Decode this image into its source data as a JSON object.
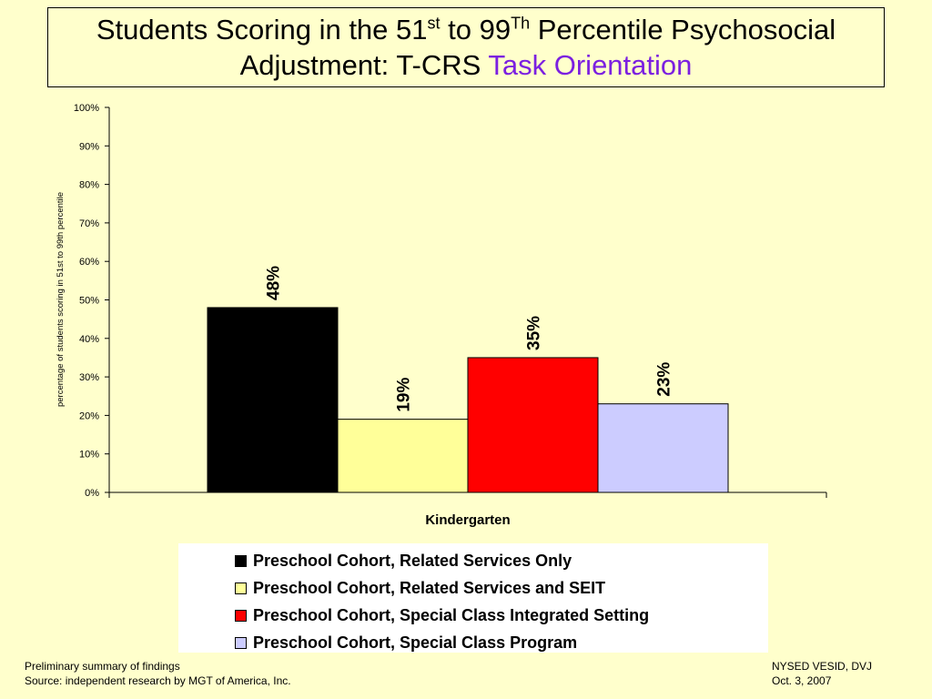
{
  "title": {
    "line1_part1": "Students Scoring in the 51",
    "line1_sup1": "st",
    "line1_part2": " to 99",
    "line1_sup2": "Th",
    "line1_part3": " Percentile Psychosocial",
    "line2_part1": "Adjustment: T-CRS ",
    "line2_accent": "Task Orientation",
    "accent_color": "#7B20E0"
  },
  "chart_data": {
    "type": "bar",
    "categories": [
      "Kindergarten"
    ],
    "series": [
      {
        "name": "Preschool Cohort, Related Services Only",
        "values": [
          48
        ],
        "color": "#000000",
        "label": "48%"
      },
      {
        "name": "Preschool Cohort, Related Services and SEIT",
        "values": [
          19
        ],
        "color": "#FFFF99",
        "label": "19%"
      },
      {
        "name": "Preschool Cohort, Special Class Integrated Setting",
        "values": [
          35
        ],
        "color": "#FF0000",
        "label": "35%"
      },
      {
        "name": "Preschool Cohort, Special Class Program",
        "values": [
          23
        ],
        "color": "#CCCCFF",
        "label": "23%"
      }
    ],
    "ylabel": "percentage of students scoring in 51st to 99th percentile",
    "xlabel": "Kindergarten",
    "ylim": [
      0,
      100
    ],
    "yticks": [
      "0%",
      "10%",
      "20%",
      "30%",
      "40%",
      "50%",
      "60%",
      "70%",
      "80%",
      "90%",
      "100%"
    ],
    "grid": false,
    "legend_position": "bottom"
  },
  "footer": {
    "left_line1": "Preliminary summary of findings",
    "left_line2": "Source: independent research by MGT of America, Inc.",
    "right_line1": "NYSED VESID, DVJ",
    "right_line2": "Oct. 3, 2007"
  }
}
